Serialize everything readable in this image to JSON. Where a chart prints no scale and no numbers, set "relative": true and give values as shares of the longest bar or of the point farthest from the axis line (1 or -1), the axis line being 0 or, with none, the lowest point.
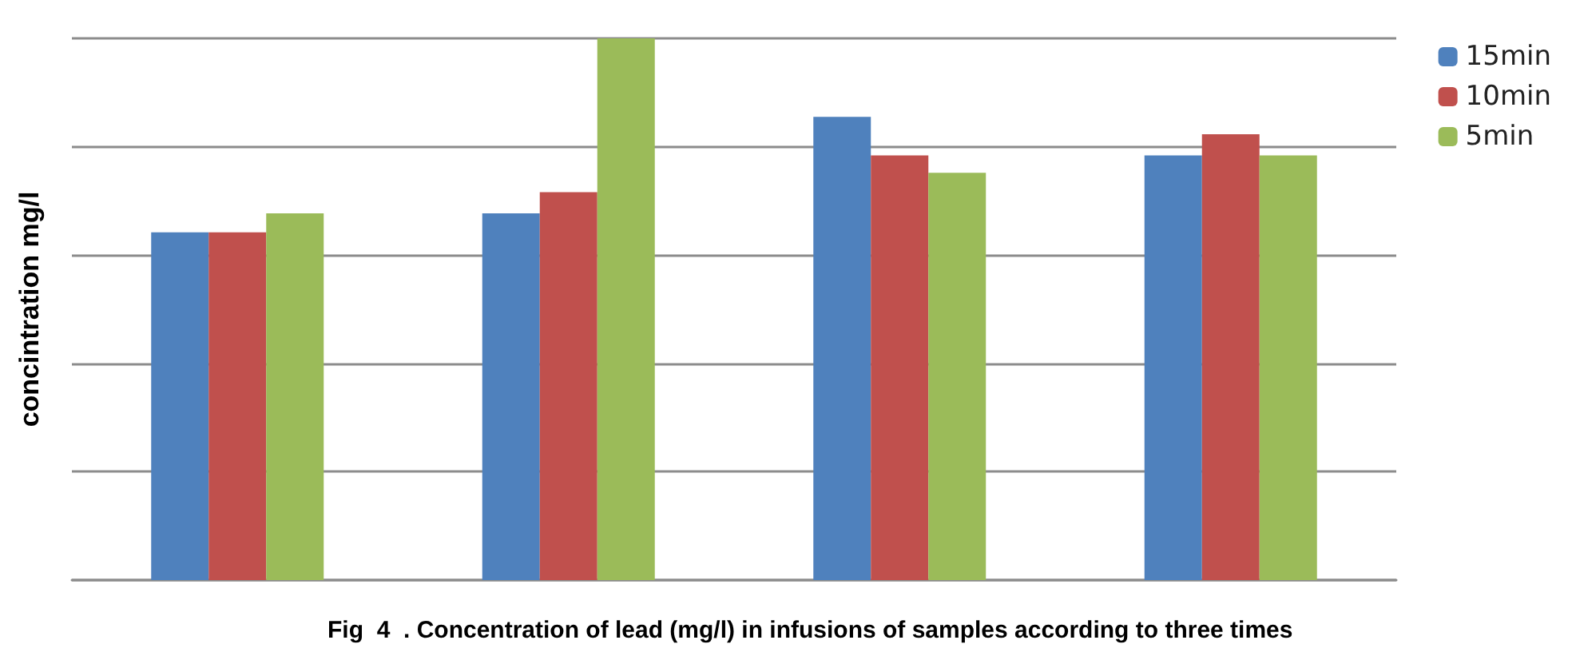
{
  "chart_data": {
    "type": "bar",
    "title": "Fig  4  . Concentration of lead (mg/l) in infusions of samples according to three times",
    "ylabel": "concintration mg/l",
    "categories": [
      null,
      null,
      null,
      null
    ],
    "relative": true,
    "grid": "y",
    "legend": "top right",
    "series": [
      {
        "name": "15min",
        "color": "#4f81bd",
        "values": [
          0.642,
          0.677,
          0.855,
          0.784
        ]
      },
      {
        "name": "10min",
        "color": "#c0504d",
        "values": [
          0.642,
          0.716,
          0.784,
          0.823
        ]
      },
      {
        "name": "5min",
        "color": "#9bbb59",
        "values": [
          0.677,
          1,
          0.752,
          0.784
        ]
      }
    ]
  }
}
